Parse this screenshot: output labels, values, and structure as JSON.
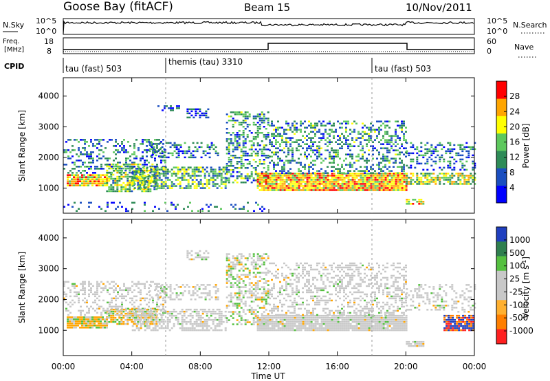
{
  "header": {
    "station": "Goose Bay (fitACF)",
    "beam": "Beam 15",
    "date": "10/Nov/2011"
  },
  "noise_panel": {
    "left_label": "N.Sky",
    "right_label": "N.Search",
    "left_ticks": [
      "10^5",
      "10^0"
    ],
    "right_ticks": [
      "10^5",
      "10^0"
    ]
  },
  "freq_panel": {
    "left_label_1": "Freq.",
    "left_label_2": "[MHz]",
    "right_label": "Nave",
    "left_ticks": [
      "18",
      "8"
    ],
    "right_ticks": [
      "60",
      "0"
    ]
  },
  "cpid": {
    "label": "CPID",
    "segments": [
      {
        "name": "tau (fast) 503",
        "start_hour": 0
      },
      {
        "name": "themis (tau) 3310",
        "start_hour": 6
      },
      {
        "name": "tau (fast) 503",
        "start_hour": 18
      }
    ]
  },
  "chart_data": [
    {
      "type": "heatmap",
      "name": "power",
      "ylabel": "Slant Range [km]",
      "ylim": [
        180,
        4600
      ],
      "yticks": [
        1000,
        2000,
        3000,
        4000
      ],
      "xlim_hours": [
        0,
        24
      ],
      "colorbar_label": "Power [dB]",
      "colorbar_ticks": [
        "28",
        "24",
        "20",
        "16",
        "12",
        "8",
        "4"
      ],
      "colorscale": [
        "#0000ff",
        "#1a4ec0",
        "#2e8b57",
        "#5dc85d",
        "#ffff00",
        "#ffa500",
        "#ff0000"
      ],
      "scatter_bands": [
        {
          "t0": 0.2,
          "t1": 2.5,
          "r0": 1100,
          "r1": 1450,
          "dens": 0.9,
          "lvl": 0.7
        },
        {
          "t0": 2.5,
          "t1": 5.5,
          "r0": 900,
          "r1": 1800,
          "dens": 0.7,
          "lvl": 0.5
        },
        {
          "t0": 0,
          "t1": 6,
          "r0": 1500,
          "r1": 2600,
          "dens": 0.35,
          "lvl": 0.3
        },
        {
          "t0": 4,
          "t1": 9.5,
          "r0": 1000,
          "r1": 1700,
          "dens": 0.6,
          "lvl": 0.45
        },
        {
          "t0": 5,
          "t1": 9,
          "r0": 2000,
          "r1": 2500,
          "dens": 0.4,
          "lvl": 0.3
        },
        {
          "t0": 5.5,
          "t1": 6.8,
          "r0": 3500,
          "r1": 3700,
          "dens": 0.5,
          "lvl": 0.15
        },
        {
          "t0": 7.2,
          "t1": 8.5,
          "r0": 3300,
          "r1": 3600,
          "dens": 0.6,
          "lvl": 0.2
        },
        {
          "t0": 9.5,
          "t1": 12,
          "r0": 1200,
          "r1": 3500,
          "dens": 0.45,
          "lvl": 0.35
        },
        {
          "t0": 11.3,
          "t1": 20,
          "r0": 900,
          "r1": 1500,
          "dens": 0.95,
          "lvl": 0.72
        },
        {
          "t0": 12,
          "t1": 20,
          "r0": 1500,
          "r1": 3200,
          "dens": 0.4,
          "lvl": 0.35
        },
        {
          "t0": 20,
          "t1": 24,
          "r0": 1100,
          "r1": 1500,
          "dens": 0.7,
          "lvl": 0.55
        },
        {
          "t0": 20,
          "t1": 24,
          "r0": 1600,
          "r1": 2500,
          "dens": 0.35,
          "lvl": 0.3
        },
        {
          "t0": 20,
          "t1": 21,
          "r0": 500,
          "r1": 650,
          "dens": 0.8,
          "lvl": 0.65
        },
        {
          "t0": 0,
          "t1": 12,
          "r0": 250,
          "r1": 550,
          "dens": 0.15,
          "lvl": 0.25
        }
      ]
    },
    {
      "type": "heatmap",
      "name": "velocity",
      "ylabel": "Slant Range [km]",
      "xlabel": "Time UT",
      "ylim": [
        180,
        4600
      ],
      "yticks": [
        1000,
        2000,
        3000,
        4000
      ],
      "xlim_hours": [
        0,
        24
      ],
      "xticks": [
        "00:00",
        "04:00",
        "08:00",
        "12:00",
        "16:00",
        "20:00",
        "00:00"
      ],
      "colorbar_label": "Velocity [m s^-1]",
      "colorbar_ticks": [
        "1000",
        "500",
        "100",
        "25",
        "-25",
        "-100",
        "-500",
        "-1000"
      ],
      "colorscale": [
        "#1f3fbf",
        "#2f7f4f",
        "#55c040",
        "#c8c8c8",
        "#c8c8c8",
        "#ffb030",
        "#ff7f00",
        "#ff2020"
      ],
      "scatter_bands": [
        {
          "t0": 0.2,
          "t1": 2.5,
          "r0": 1100,
          "r1": 1450,
          "dens": 0.9,
          "kind": "orange"
        },
        {
          "t0": 2.5,
          "t1": 5.5,
          "r0": 1200,
          "r1": 1700,
          "dens": 0.7,
          "kind": "orange"
        },
        {
          "t0": 0,
          "t1": 6,
          "r0": 1500,
          "r1": 2600,
          "dens": 0.35,
          "kind": "gray"
        },
        {
          "t0": 4,
          "t1": 9.5,
          "r0": 1000,
          "r1": 1700,
          "dens": 0.55,
          "kind": "gray"
        },
        {
          "t0": 5,
          "t1": 9,
          "r0": 2000,
          "r1": 2500,
          "dens": 0.4,
          "kind": "gray"
        },
        {
          "t0": 7.2,
          "t1": 8.5,
          "r0": 3300,
          "r1": 3600,
          "dens": 0.5,
          "kind": "gray"
        },
        {
          "t0": 9.5,
          "t1": 12,
          "r0": 1200,
          "r1": 3500,
          "dens": 0.45,
          "kind": "mixed"
        },
        {
          "t0": 11.3,
          "t1": 20,
          "r0": 1000,
          "r1": 1500,
          "dens": 0.95,
          "kind": "gray"
        },
        {
          "t0": 12,
          "t1": 20,
          "r0": 1500,
          "r1": 3200,
          "dens": 0.4,
          "kind": "gray"
        },
        {
          "t0": 20,
          "t1": 24,
          "r0": 1600,
          "r1": 2500,
          "dens": 0.3,
          "kind": "gray"
        },
        {
          "t0": 22.2,
          "t1": 24,
          "r0": 1000,
          "r1": 1500,
          "dens": 0.9,
          "kind": "blue"
        },
        {
          "t0": 20,
          "t1": 21,
          "r0": 500,
          "r1": 650,
          "dens": 0.8,
          "kind": "gray"
        }
      ]
    }
  ]
}
